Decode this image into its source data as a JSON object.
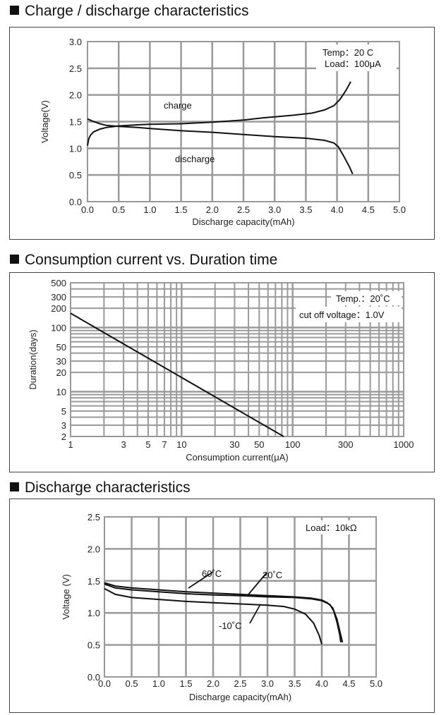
{
  "sections": [
    {
      "title": "Charge / discharge characteristics"
    },
    {
      "title": "Consumption current vs. Duration time"
    },
    {
      "title": "Discharge characteristics"
    }
  ],
  "chart_data": [
    {
      "type": "line",
      "title": "Charge / discharge characteristics",
      "xlabel": "Discharge capacity(mAh)",
      "ylabel": "Voltage(V)",
      "xlim": [
        0,
        5
      ],
      "ylim": [
        0,
        3
      ],
      "x_ticks": [
        "0.0",
        "0.5",
        "1.0",
        "1.5",
        "2.0",
        "2.5",
        "3.0",
        "3.5",
        "4.0",
        "4.5",
        "5.0"
      ],
      "y_ticks": [
        "0.0",
        "0.5",
        "1.0",
        "1.5",
        "2.0",
        "2.5",
        "3.0"
      ],
      "conditions": [
        "Temp：20 C",
        "Load：100μA"
      ],
      "series": [
        {
          "name": "charge",
          "points": [
            [
              0,
              1.05
            ],
            [
              0.02,
              1.18
            ],
            [
              0.05,
              1.25
            ],
            [
              0.1,
              1.31
            ],
            [
              0.2,
              1.36
            ],
            [
              0.3,
              1.39
            ],
            [
              0.5,
              1.42
            ],
            [
              0.8,
              1.44
            ],
            [
              1.0,
              1.45
            ],
            [
              1.5,
              1.46
            ],
            [
              2.0,
              1.49
            ],
            [
              2.5,
              1.53
            ],
            [
              2.8,
              1.57
            ],
            [
              3.0,
              1.59
            ],
            [
              3.3,
              1.62
            ],
            [
              3.6,
              1.66
            ],
            [
              3.8,
              1.72
            ],
            [
              3.95,
              1.8
            ],
            [
              4.05,
              1.92
            ],
            [
              4.15,
              2.1
            ],
            [
              4.22,
              2.25
            ]
          ]
        },
        {
          "name": "discharge",
          "points": [
            [
              0,
              1.55
            ],
            [
              0.1,
              1.5
            ],
            [
              0.2,
              1.46
            ],
            [
              0.3,
              1.43
            ],
            [
              0.5,
              1.41
            ],
            [
              0.8,
              1.39
            ],
            [
              1.0,
              1.37
            ],
            [
              1.5,
              1.33
            ],
            [
              2.0,
              1.3
            ],
            [
              2.5,
              1.26
            ],
            [
              3.0,
              1.22
            ],
            [
              3.5,
              1.19
            ],
            [
              3.8,
              1.15
            ],
            [
              3.95,
              1.1
            ],
            [
              4.02,
              1.03
            ],
            [
              4.1,
              0.87
            ],
            [
              4.2,
              0.65
            ],
            [
              4.25,
              0.52
            ]
          ]
        }
      ],
      "annotations": [
        "charge",
        "discharge"
      ]
    },
    {
      "type": "line",
      "title": "Consumption current vs. Duration time",
      "xlabel": "Consumption current(μA)",
      "ylabel": "Duration(days)",
      "xscale": "log",
      "yscale": "log",
      "xlim": [
        1,
        1000
      ],
      "ylim": [
        2,
        500
      ],
      "x_ticks": [
        {
          "v": 1,
          "label": "1"
        },
        {
          "v": 3,
          "label": "3"
        },
        {
          "v": 5,
          "label": "5"
        },
        {
          "v": 7,
          "label": "7"
        },
        {
          "v": 10,
          "label": "10"
        },
        {
          "v": 30,
          "label": "30"
        },
        {
          "v": 50,
          "label": "50"
        },
        {
          "v": 100,
          "label": "100"
        },
        {
          "v": 300,
          "label": "300"
        },
        {
          "v": 1000,
          "label": "1000"
        }
      ],
      "y_ticks": [
        {
          "v": 2,
          "label": "2"
        },
        {
          "v": 3,
          "label": "3"
        },
        {
          "v": 5,
          "label": "5"
        },
        {
          "v": 10,
          "label": "10"
        },
        {
          "v": 20,
          "label": "20"
        },
        {
          "v": 30,
          "label": "30"
        },
        {
          "v": 50,
          "label": "50"
        },
        {
          "v": 100,
          "label": "100"
        },
        {
          "v": 200,
          "label": "200"
        },
        {
          "v": 300,
          "label": "300"
        },
        {
          "v": 500,
          "label": "500"
        }
      ],
      "conditions": [
        "Temp.：20˚C",
        "cut off voltage：1.0V"
      ],
      "series": [
        {
          "name": "duration",
          "points": [
            [
              1,
              167
            ],
            [
              83,
              2
            ]
          ]
        }
      ]
    },
    {
      "type": "line",
      "title": "Discharge characteristics",
      "xlabel": "Discharge capacity(mAh)",
      "ylabel": "Voltage (V)",
      "xlim": [
        0,
        5
      ],
      "ylim": [
        0,
        2.5
      ],
      "x_ticks": [
        "0.0",
        "0.5",
        "1.0",
        "1.5",
        "2.0",
        "2.5",
        "3.0",
        "3.5",
        "4.0",
        "4.5",
        "5.0"
      ],
      "y_ticks": [
        "0.0",
        "0.5",
        "1.0",
        "1.5",
        "2.0",
        "2.5"
      ],
      "conditions": [
        "Load：10kΩ"
      ],
      "series": [
        {
          "name": "60˚C",
          "points": [
            [
              0,
              1.47
            ],
            [
              0.2,
              1.42
            ],
            [
              0.5,
              1.39
            ],
            [
              1.0,
              1.36
            ],
            [
              1.5,
              1.33
            ],
            [
              2.0,
              1.31
            ],
            [
              2.5,
              1.29
            ],
            [
              3.0,
              1.27
            ],
            [
              3.5,
              1.25
            ],
            [
              3.8,
              1.23
            ],
            [
              4.0,
              1.2
            ],
            [
              4.1,
              1.16
            ],
            [
              4.2,
              1.08
            ],
            [
              4.28,
              0.9
            ],
            [
              4.33,
              0.72
            ],
            [
              4.38,
              0.54
            ]
          ]
        },
        {
          "name": "20˚C",
          "points": [
            [
              0,
              1.45
            ],
            [
              0.2,
              1.39
            ],
            [
              0.5,
              1.36
            ],
            [
              1.0,
              1.33
            ],
            [
              1.5,
              1.3
            ],
            [
              2.0,
              1.28
            ],
            [
              2.5,
              1.27
            ],
            [
              3.0,
              1.25
            ],
            [
              3.5,
              1.24
            ],
            [
              3.8,
              1.22
            ],
            [
              4.0,
              1.19
            ],
            [
              4.15,
              1.13
            ],
            [
              4.22,
              1.03
            ],
            [
              4.28,
              0.85
            ],
            [
              4.33,
              0.66
            ],
            [
              4.35,
              0.54
            ]
          ]
        },
        {
          "name": "-10˚C",
          "points": [
            [
              0,
              1.38
            ],
            [
              0.2,
              1.29
            ],
            [
              0.5,
              1.24
            ],
            [
              1.0,
              1.21
            ],
            [
              1.5,
              1.18
            ],
            [
              2.0,
              1.16
            ],
            [
              2.5,
              1.14
            ],
            [
              3.0,
              1.12
            ],
            [
              3.3,
              1.1
            ],
            [
              3.5,
              1.06
            ],
            [
              3.7,
              0.98
            ],
            [
              3.85,
              0.84
            ],
            [
              3.95,
              0.65
            ],
            [
              4.0,
              0.51
            ]
          ]
        }
      ]
    }
  ]
}
